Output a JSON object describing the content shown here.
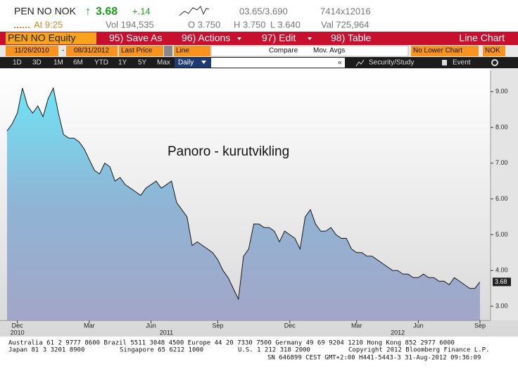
{
  "header": {
    "ticker": "PEN NO NOK",
    "direction": "↑",
    "last_price": "3.68",
    "change": "+.14",
    "bid_ask": "03.65/3.690",
    "size": "7414x12016",
    "time": "At 9:25",
    "volume": "Vol 194,535",
    "open": "O 3.750",
    "high": "H 3.750",
    "low": "L 3.640",
    "value": "Val 725,964"
  },
  "toolbar": {
    "security": "PEN NO Equity",
    "buttons": [
      "95) Save As",
      "96) Actions",
      "97) Edit",
      "98) Table"
    ],
    "view": "Line Chart"
  },
  "controls": {
    "start": "11/26/2010",
    "separator": "-",
    "end": "08/31/2012",
    "field": "Last Price",
    "style": "Line",
    "compare": "Compare",
    "mov_avgs": "Mov. Avgs",
    "lower": "No Lower Chart",
    "currency": "NOK"
  },
  "ranges": {
    "items": [
      "1D",
      "3D",
      "1M",
      "6M",
      "YTD",
      "1Y",
      "5Y",
      "Max"
    ],
    "frequency": "Daily",
    "collapse": "«",
    "security_study": "Security/Study",
    "event": "Event"
  },
  "chart_data": {
    "type": "area",
    "annotation": "Panoro - kurutvikling",
    "line_color": "#1a1a1a",
    "categories": [
      null,
      null,
      "Dec",
      null,
      null,
      null,
      null,
      null,
      null,
      null,
      null,
      null,
      null,
      null,
      null,
      null,
      "Mar",
      null,
      null,
      null,
      null,
      null,
      null,
      null,
      null,
      null,
      null,
      null,
      "Jun",
      null,
      null,
      null,
      null,
      null,
      null,
      null,
      null,
      null,
      null,
      null,
      null,
      "Sep",
      null,
      null,
      null,
      null,
      null,
      null,
      null,
      null,
      null,
      null,
      null,
      null,
      null,
      "Dec",
      null,
      null,
      null,
      null,
      null,
      null,
      null,
      null,
      null,
      null,
      null,
      null,
      "Mar",
      null,
      null,
      null,
      null,
      null,
      null,
      null,
      null,
      null,
      null,
      null,
      "Jun",
      null,
      null,
      null,
      null,
      null,
      null,
      null,
      null,
      null,
      null,
      null,
      "Sep"
    ],
    "years": [
      null,
      null,
      "2010",
      null,
      null,
      null,
      null,
      null,
      null,
      null,
      null,
      null,
      null,
      null,
      null,
      null,
      null,
      null,
      null,
      null,
      null,
      null,
      null,
      null,
      null,
      null,
      null,
      null,
      null,
      null,
      null,
      "2011",
      null,
      null,
      null,
      null,
      null,
      null,
      null,
      null,
      null,
      null,
      null,
      null,
      null,
      null,
      null,
      null,
      null,
      null,
      null,
      null,
      null,
      null,
      null,
      null,
      null,
      null,
      null,
      null,
      null,
      null,
      null,
      null,
      null,
      null,
      null,
      null,
      null,
      null,
      null,
      null,
      null,
      null,
      null,
      null,
      "2012",
      null,
      null,
      null,
      null,
      null,
      null,
      null,
      null,
      null,
      null,
      null,
      null,
      null,
      null,
      null,
      null
    ],
    "values": [
      7.9,
      8.1,
      8.4,
      9.1,
      8.6,
      8.4,
      8.6,
      8.3,
      8.8,
      9.1,
      8.4,
      7.8,
      7.7,
      7.7,
      7.6,
      7.4,
      7.1,
      6.8,
      6.7,
      7.0,
      6.9,
      6.5,
      6.6,
      6.4,
      6.3,
      6.2,
      6.1,
      6.3,
      6.4,
      6.5,
      6.3,
      6.4,
      6.5,
      5.9,
      5.7,
      5.5,
      4.7,
      4.8,
      4.7,
      4.6,
      4.5,
      4.3,
      4.0,
      3.8,
      3.5,
      3.2,
      4.4,
      4.6,
      5.3,
      5.3,
      5.2,
      5.2,
      5.1,
      4.8,
      5.1,
      5.0,
      4.9,
      4.6,
      5.5,
      5.7,
      5.3,
      5.1,
      5.1,
      5.2,
      5.0,
      4.9,
      4.9,
      4.6,
      4.5,
      4.5,
      4.4,
      4.4,
      4.3,
      4.2,
      4.1,
      4.0,
      4.0,
      3.9,
      3.9,
      3.8,
      3.8,
      3.9,
      3.8,
      3.8,
      3.7,
      3.7,
      3.6,
      3.8,
      3.7,
      3.6,
      3.5,
      3.5,
      3.68
    ],
    "ylim": [
      2.6,
      9.6
    ],
    "yticks": [
      {
        "value": 3,
        "label": "3.00"
      },
      {
        "value": 4,
        "label": "4.00"
      },
      {
        "value": 5,
        "label": "5.00"
      },
      {
        "value": 6,
        "label": "6.00"
      },
      {
        "value": 7,
        "label": "7.00"
      },
      {
        "value": 8,
        "label": "8.00"
      },
      {
        "value": 9,
        "label": "9.00"
      }
    ]
  },
  "footer": {
    "line1": "Australia 61 2 9777 8600 Brazil 5511 3048 4500 Europe 44 20 7330 7500 Germany 49 69 9204 1210 Hong Kong 852 2977 6000",
    "line2": [
      "Japan 81 3 3201 8900",
      "Singapore 65 6212 1000",
      "U.S. 1 212 318 2000",
      "Copyright 2012 Bloomberg Finance L.P."
    ],
    "line3": "SN 646899 CEST GMT+2:00 H441-5443-3 31-Aug-2012 09:36:09"
  }
}
